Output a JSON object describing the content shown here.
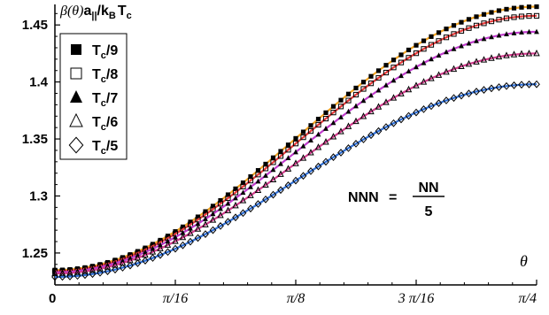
{
  "chart_data": {
    "type": "line",
    "ylabel": "β(θ)a||/kBTc",
    "ylabel_parts": {
      "beta": "β",
      "theta_paren": "(θ)",
      "a": "a",
      "a_sub": "||",
      "mid": "/k",
      "kB_sub": "B",
      "T": "T",
      "Tc_sub": "c"
    },
    "xlabel": "θ",
    "xlim": [
      0,
      0.7853981634
    ],
    "ylim": [
      1.222,
      1.468
    ],
    "x_ticks": [
      {
        "value": 0,
        "label": "0"
      },
      {
        "value": 0.1963495408,
        "label": "π/16"
      },
      {
        "value": 0.3926990817,
        "label": "π/8"
      },
      {
        "value": 0.5890486225,
        "label": "3 π/16"
      },
      {
        "value": 0.7853981634,
        "label": "π/4"
      }
    ],
    "y_ticks": [
      {
        "value": 1.25,
        "label": "1.25"
      },
      {
        "value": 1.3,
        "label": "1.3"
      },
      {
        "value": 1.35,
        "label": "1.35"
      },
      {
        "value": 1.4,
        "label": "1.4"
      },
      {
        "value": 1.45,
        "label": "1.45"
      }
    ],
    "grid": false,
    "legend_position": "top-left",
    "annotation": {
      "lhs": "NNN",
      "eq": "=",
      "numerator": "NN",
      "denominator": "5"
    },
    "series": [
      {
        "name": "Tc/9",
        "label_main": "T",
        "label_sub": "c",
        "label_tail": "/9",
        "marker": "filled-square",
        "line_color": "#f5a623",
        "start": 1.235,
        "end": 1.466
      },
      {
        "name": "Tc/8",
        "label_main": "T",
        "label_sub": "c",
        "label_tail": "/8",
        "marker": "open-square",
        "line_color": "#e83a3a",
        "start": 1.234,
        "end": 1.458
      },
      {
        "name": "Tc/7",
        "label_main": "T",
        "label_sub": "c",
        "label_tail": "/7",
        "marker": "filled-triangle",
        "line_color": "#c03ccc",
        "start": 1.233,
        "end": 1.444
      },
      {
        "name": "Tc/6",
        "label_main": "T",
        "label_sub": "c",
        "label_tail": "/6",
        "marker": "open-triangle",
        "line_color": "#d43c8e",
        "start": 1.232,
        "end": 1.425
      },
      {
        "name": "Tc/5",
        "label_main": "T",
        "label_sub": "c",
        "label_tail": "/5",
        "marker": "open-diamond",
        "line_color": "#2f6fd6",
        "start": 1.229,
        "end": 1.398
      }
    ]
  }
}
